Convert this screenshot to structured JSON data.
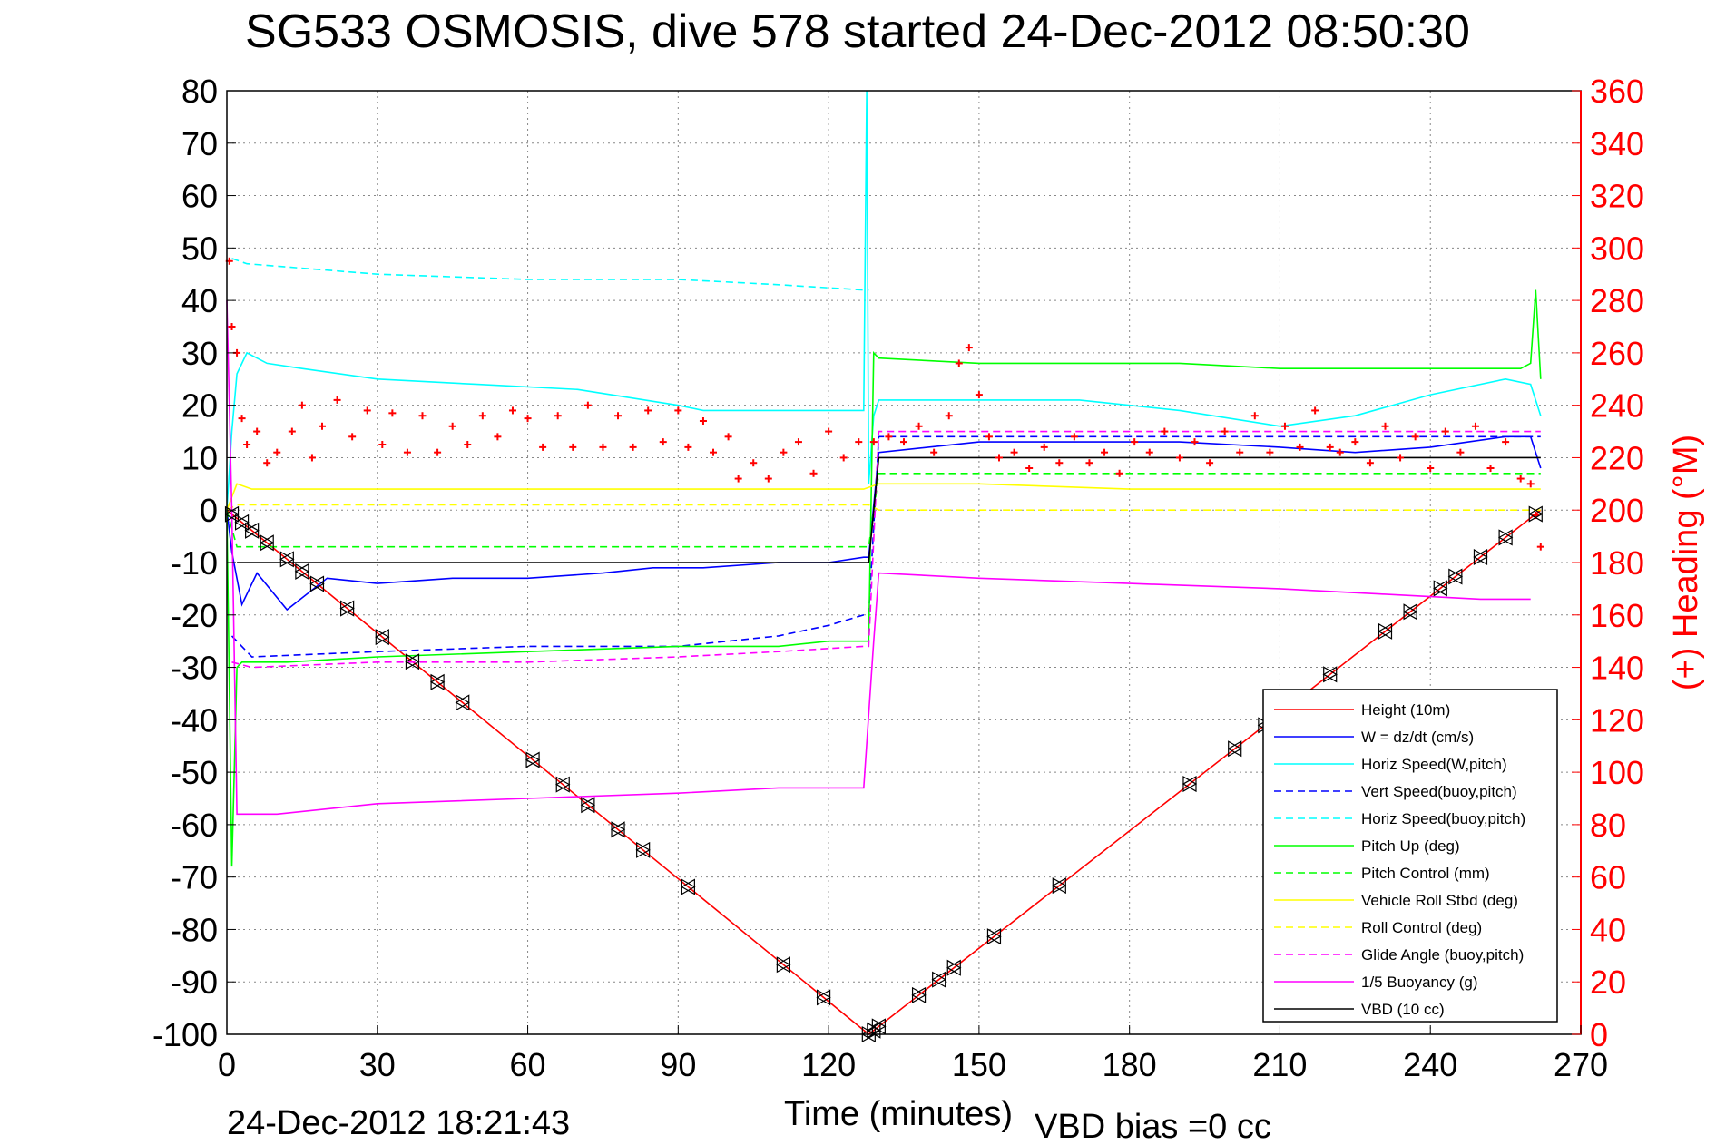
{
  "chart_data": {
    "type": "line",
    "title": "SG533 OSMOSIS, dive 578 started 24-Dec-2012 08:50:30",
    "xlabel": "Time (minutes)",
    "ylabel": "",
    "y2label": "(+) Heading (°M)",
    "xlim": [
      0,
      270
    ],
    "ylim": [
      -100,
      80
    ],
    "y2lim": [
      0,
      360
    ],
    "xticks": [
      0,
      30,
      60,
      90,
      120,
      150,
      180,
      210,
      240,
      270
    ],
    "yticks": [
      80,
      70,
      60,
      50,
      40,
      30,
      20,
      10,
      0,
      -10,
      -20,
      -30,
      -40,
      -50,
      -60,
      -70,
      -80,
      -90,
      -100
    ],
    "y2ticks": [
      360,
      340,
      320,
      300,
      280,
      260,
      240,
      220,
      200,
      180,
      160,
      140,
      120,
      100,
      80,
      60,
      40,
      20,
      0
    ],
    "grid": true,
    "legend_position": "bottom-right",
    "footer_date": "24-Dec-2012 18:21:43",
    "footer_bias": "VBD bias =0 cc",
    "colors": {
      "red": "#ff0000",
      "blue": "#0000ff",
      "cyan": "#00ffff",
      "green": "#00ff00",
      "yellow": "#ffff00",
      "magenta": "#ff00ff",
      "black": "#000000",
      "grid": "#888888"
    },
    "series": [
      {
        "name": "Height (10m)",
        "color": "#ff0000",
        "dash": false,
        "x": [
          0,
          128,
          262
        ],
        "y": [
          0,
          -100,
          0
        ]
      },
      {
        "name": "W = dz/dt (cm/s)",
        "color": "#0000ff",
        "dash": false,
        "x": [
          0,
          1,
          3,
          6,
          12,
          20,
          30,
          45,
          60,
          75,
          85,
          95,
          110,
          120,
          127,
          128,
          130,
          150,
          170,
          190,
          210,
          225,
          240,
          255,
          260,
          262
        ],
        "y": [
          0,
          -8,
          -18,
          -12,
          -19,
          -13,
          -14,
          -13,
          -13,
          -12,
          -11,
          -11,
          -10,
          -10,
          -9,
          -9,
          11,
          13,
          13,
          13,
          12,
          11,
          12,
          14,
          14,
          8
        ]
      },
      {
        "name": "Horiz Speed(W,pitch)",
        "color": "#00ffff",
        "dash": false,
        "x": [
          0,
          1,
          2,
          4,
          8,
          15,
          30,
          50,
          70,
          90,
          95,
          110,
          125,
          127,
          127.6,
          128,
          129,
          130,
          150,
          170,
          190,
          210,
          225,
          240,
          255,
          260,
          262
        ],
        "y": [
          0,
          15,
          26,
          30,
          28,
          27,
          25,
          24,
          23,
          20,
          19,
          19,
          19,
          19,
          80,
          5,
          18,
          21,
          21,
          21,
          19,
          16,
          18,
          22,
          25,
          24,
          18
        ]
      },
      {
        "name": "Vert Speed(buoy,pitch)",
        "color": "#0000ff",
        "dash": true,
        "x": [
          1,
          5,
          30,
          60,
          90,
          110,
          120,
          127,
          128,
          130,
          262
        ],
        "y": [
          -24,
          -28,
          -27,
          -26,
          -26,
          -24,
          -22,
          -20,
          -20,
          14,
          14
        ]
      },
      {
        "name": "Horiz Speed(buoy,pitch)",
        "color": "#00ffff",
        "dash": true,
        "x": [
          1,
          4,
          30,
          60,
          90,
          110,
          127,
          128
        ],
        "y": [
          48,
          47,
          45,
          44,
          44,
          43,
          42,
          42
        ]
      },
      {
        "name": "Pitch Up (deg)",
        "color": "#00ff00",
        "dash": false,
        "x": [
          0,
          1,
          2,
          3,
          6,
          12,
          30,
          60,
          90,
          110,
          120,
          127,
          128,
          129,
          130,
          150,
          170,
          190,
          210,
          230,
          250,
          258,
          260,
          261,
          262
        ],
        "y": [
          0,
          -68,
          -30,
          -29,
          -29,
          -29,
          -28,
          -27,
          -26,
          -26,
          -25,
          -25,
          -25,
          30,
          29,
          28,
          28,
          28,
          27,
          27,
          27,
          27,
          28,
          42,
          25
        ]
      },
      {
        "name": "Pitch Control (mm)",
        "color": "#00ff00",
        "dash": true,
        "x": [
          0,
          2,
          128,
          130,
          262
        ],
        "y": [
          0,
          -7,
          -7,
          7,
          7
        ]
      },
      {
        "name": "Vehicle Roll Stbd (deg)",
        "color": "#ffff00",
        "dash": false,
        "x": [
          0,
          2,
          5,
          15,
          30,
          60,
          90,
          127,
          130,
          150,
          180,
          210,
          240,
          262
        ],
        "y": [
          0,
          5,
          4,
          4,
          4,
          4,
          4,
          4,
          5,
          5,
          4,
          4,
          4,
          4
        ]
      },
      {
        "name": "Roll Control (deg)",
        "color": "#ffff00",
        "dash": true,
        "x": [
          0,
          2,
          128,
          130,
          262
        ],
        "y": [
          0,
          1,
          1,
          0,
          0
        ]
      },
      {
        "name": "Glide Angle (buoy,pitch)",
        "color": "#ff00ff",
        "dash": true,
        "x": [
          1,
          5,
          30,
          60,
          90,
          110,
          127,
          128,
          130,
          262
        ],
        "y": [
          -29,
          -30,
          -29,
          -29,
          -28,
          -27,
          -26,
          -26,
          15,
          15
        ]
      },
      {
        "name": "1/5 Buoyancy (g)",
        "color": "#ff00ff",
        "dash": false,
        "x": [
          0,
          1,
          2,
          3,
          10,
          30,
          60,
          90,
          110,
          125,
          127,
          129,
          130,
          150,
          180,
          210,
          230,
          250,
          260
        ],
        "y": [
          40,
          0,
          -58,
          -58,
          -58,
          -56,
          -55,
          -54,
          -53,
          -53,
          -53,
          -25,
          -12,
          -13,
          -14,
          -15,
          -16,
          -17,
          -17
        ]
      },
      {
        "name": "VBD (10 cc)",
        "color": "#000000",
        "dash": false,
        "x": [
          2,
          128,
          130,
          262
        ],
        "y": [
          -10,
          -10,
          10,
          10
        ]
      }
    ],
    "heading_points_deg": [
      [
        0.5,
        295
      ],
      [
        1,
        270
      ],
      [
        2,
        260
      ],
      [
        3,
        235
      ],
      [
        4,
        225
      ],
      [
        6,
        230
      ],
      [
        8,
        218
      ],
      [
        10,
        222
      ],
      [
        13,
        230
      ],
      [
        15,
        240
      ],
      [
        17,
        220
      ],
      [
        19,
        232
      ],
      [
        22,
        242
      ],
      [
        25,
        228
      ],
      [
        28,
        238
      ],
      [
        31,
        225
      ],
      [
        33,
        237
      ],
      [
        36,
        222
      ],
      [
        39,
        236
      ],
      [
        42,
        222
      ],
      [
        45,
        232
      ],
      [
        48,
        225
      ],
      [
        51,
        236
      ],
      [
        54,
        228
      ],
      [
        57,
        238
      ],
      [
        60,
        235
      ],
      [
        63,
        224
      ],
      [
        66,
        236
      ],
      [
        69,
        224
      ],
      [
        72,
        240
      ],
      [
        75,
        224
      ],
      [
        78,
        236
      ],
      [
        81,
        224
      ],
      [
        84,
        238
      ],
      [
        87,
        226
      ],
      [
        90,
        238
      ],
      [
        92,
        224
      ],
      [
        95,
        234
      ],
      [
        97,
        222
      ],
      [
        100,
        228
      ],
      [
        102,
        212
      ],
      [
        105,
        218
      ],
      [
        108,
        212
      ],
      [
        111,
        222
      ],
      [
        114,
        226
      ],
      [
        117,
        214
      ],
      [
        120,
        230
      ],
      [
        123,
        220
      ],
      [
        126,
        226
      ],
      [
        129,
        226
      ],
      [
        132,
        228
      ],
      [
        135,
        226
      ],
      [
        138,
        232
      ],
      [
        141,
        222
      ],
      [
        144,
        236
      ],
      [
        146,
        256
      ],
      [
        148,
        262
      ],
      [
        150,
        244
      ],
      [
        152,
        228
      ],
      [
        154,
        220
      ],
      [
        157,
        222
      ],
      [
        160,
        216
      ],
      [
        163,
        224
      ],
      [
        166,
        218
      ],
      [
        169,
        228
      ],
      [
        172,
        218
      ],
      [
        175,
        222
      ],
      [
        178,
        214
      ],
      [
        181,
        226
      ],
      [
        184,
        222
      ],
      [
        187,
        230
      ],
      [
        190,
        220
      ],
      [
        193,
        226
      ],
      [
        196,
        218
      ],
      [
        199,
        230
      ],
      [
        202,
        222
      ],
      [
        205,
        236
      ],
      [
        208,
        222
      ],
      [
        211,
        232
      ],
      [
        214,
        224
      ],
      [
        217,
        238
      ],
      [
        220,
        224
      ],
      [
        222,
        222
      ],
      [
        225,
        226
      ],
      [
        228,
        218
      ],
      [
        231,
        232
      ],
      [
        234,
        220
      ],
      [
        237,
        228
      ],
      [
        240,
        216
      ],
      [
        243,
        230
      ],
      [
        246,
        222
      ],
      [
        249,
        232
      ],
      [
        252,
        216
      ],
      [
        255,
        226
      ],
      [
        258,
        212
      ],
      [
        260,
        210
      ],
      [
        261,
        198
      ],
      [
        262,
        186
      ]
    ],
    "vbd_markers_x": [
      1,
      3,
      5,
      8,
      12,
      15,
      18,
      24,
      31,
      37,
      42,
      47,
      61,
      67,
      72,
      78,
      83,
      92,
      111,
      119,
      128,
      129,
      130,
      138,
      142,
      145,
      153,
      166,
      192,
      201,
      207,
      220,
      231,
      236,
      242,
      245,
      250,
      255,
      261
    ]
  }
}
